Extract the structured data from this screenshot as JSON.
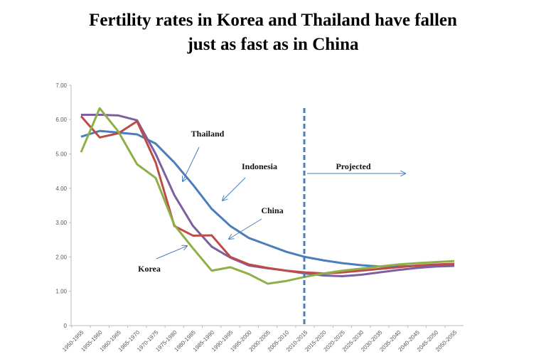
{
  "chart_data": {
    "type": "line",
    "title_line1": "Fertility rates in Korea and Thailand have fallen",
    "title_line2": "just as fast as in China",
    "xlabel": "",
    "ylabel": "",
    "ylim": [
      0,
      7
    ],
    "yticks": [
      "0",
      "1.00",
      "2.00",
      "3.00",
      "4.00",
      "5.00",
      "6.00",
      "7.00"
    ],
    "grid": false,
    "categories": [
      "1950-1955",
      "1955-1960",
      "1960-1965",
      "1965-1970",
      "1970-1975",
      "1975-1980",
      "1980-1985",
      "1985-1990",
      "1990-1995",
      "1995-2000",
      "2000-2005",
      "2005-2010",
      "2010-2015",
      "2015-2020",
      "2020-2025",
      "2025-2030",
      "2030-2035",
      "2035-2040",
      "2040-2045",
      "2045-2050",
      "2050-2055"
    ],
    "series": [
      {
        "name": "Indonesia",
        "color": "#4a7ebb",
        "values": [
          5.5,
          5.67,
          5.62,
          5.57,
          5.3,
          4.75,
          4.1,
          3.4,
          2.9,
          2.55,
          2.35,
          2.15,
          2.0,
          1.9,
          1.82,
          1.76,
          1.72,
          1.72,
          1.74,
          1.76,
          1.78
        ]
      },
      {
        "name": "Thailand",
        "color": "#7d5fa0",
        "values": [
          6.14,
          6.14,
          6.12,
          5.98,
          5.0,
          3.8,
          2.9,
          2.3,
          1.98,
          1.75,
          1.67,
          1.6,
          1.52,
          1.46,
          1.44,
          1.48,
          1.55,
          1.62,
          1.68,
          1.72,
          1.74
        ]
      },
      {
        "name": "China",
        "color": "#be4b48",
        "values": [
          6.1,
          5.48,
          5.6,
          5.95,
          4.75,
          2.9,
          2.62,
          2.63,
          2.0,
          1.78,
          1.68,
          1.6,
          1.55,
          1.52,
          1.55,
          1.6,
          1.65,
          1.7,
          1.75,
          1.78,
          1.8
        ]
      },
      {
        "name": "Korea",
        "color": "#8db046",
        "values": [
          5.05,
          6.33,
          5.65,
          4.7,
          4.3,
          2.93,
          2.25,
          1.6,
          1.7,
          1.5,
          1.22,
          1.3,
          1.42,
          1.52,
          1.6,
          1.66,
          1.72,
          1.78,
          1.82,
          1.85,
          1.88
        ]
      }
    ],
    "projection_start_category": "2010-2015",
    "annotations": {
      "thailand": "Thailand",
      "indonesia": "Indonesia",
      "china": "China",
      "korea": "Korea",
      "projected": "Projected"
    },
    "arrow_color": "#4a7ebb"
  }
}
